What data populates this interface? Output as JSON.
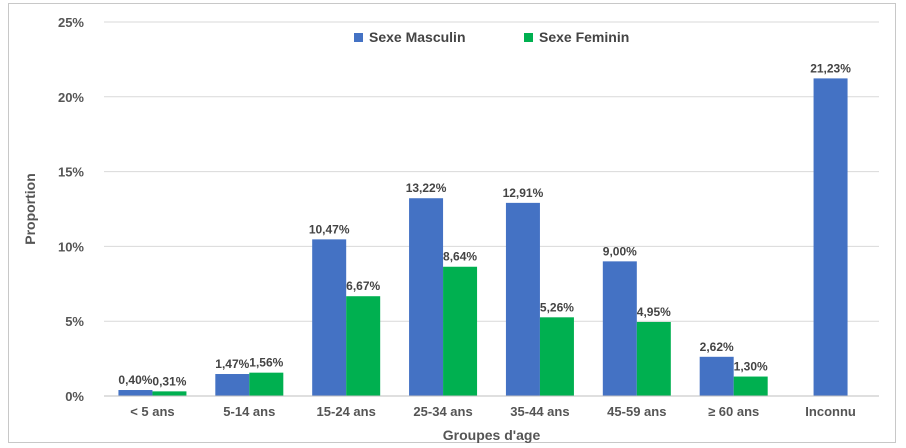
{
  "chart_data": {
    "type": "bar",
    "categories": [
      "< 5 ans",
      "5-14 ans",
      "15-24 ans",
      "25-34 ans",
      "35-44 ans",
      "45-59 ans",
      "≥ 60 ans",
      "Inconnu"
    ],
    "series": [
      {
        "name": "Sexe Masculin",
        "color": "#4472c4",
        "values": [
          0.4,
          1.47,
          10.47,
          13.22,
          12.91,
          9.0,
          2.62,
          21.23
        ],
        "labels": [
          "0,40%",
          "1,47%",
          "10,47%",
          "13,22%",
          "12,91%",
          "9,00%",
          "2,62%",
          "21,23%"
        ]
      },
      {
        "name": "Sexe Feminin",
        "color": "#00b050",
        "values": [
          0.31,
          1.56,
          6.67,
          8.64,
          5.26,
          4.95,
          1.3,
          null
        ],
        "labels": [
          "0,31%",
          "1,56%",
          "6,67%",
          "8,64%",
          "5,26%",
          "4,95%",
          "1,30%",
          null
        ]
      }
    ],
    "xlabel": "Groupes d'age",
    "ylabel": "Proportion",
    "ylim": [
      0,
      25
    ],
    "yticks": [
      0,
      5,
      10,
      15,
      20,
      25
    ],
    "ytick_labels": [
      "0%",
      "5%",
      "10%",
      "15%",
      "20%",
      "25%"
    ],
    "grid": true,
    "legend_position": "top-center"
  }
}
